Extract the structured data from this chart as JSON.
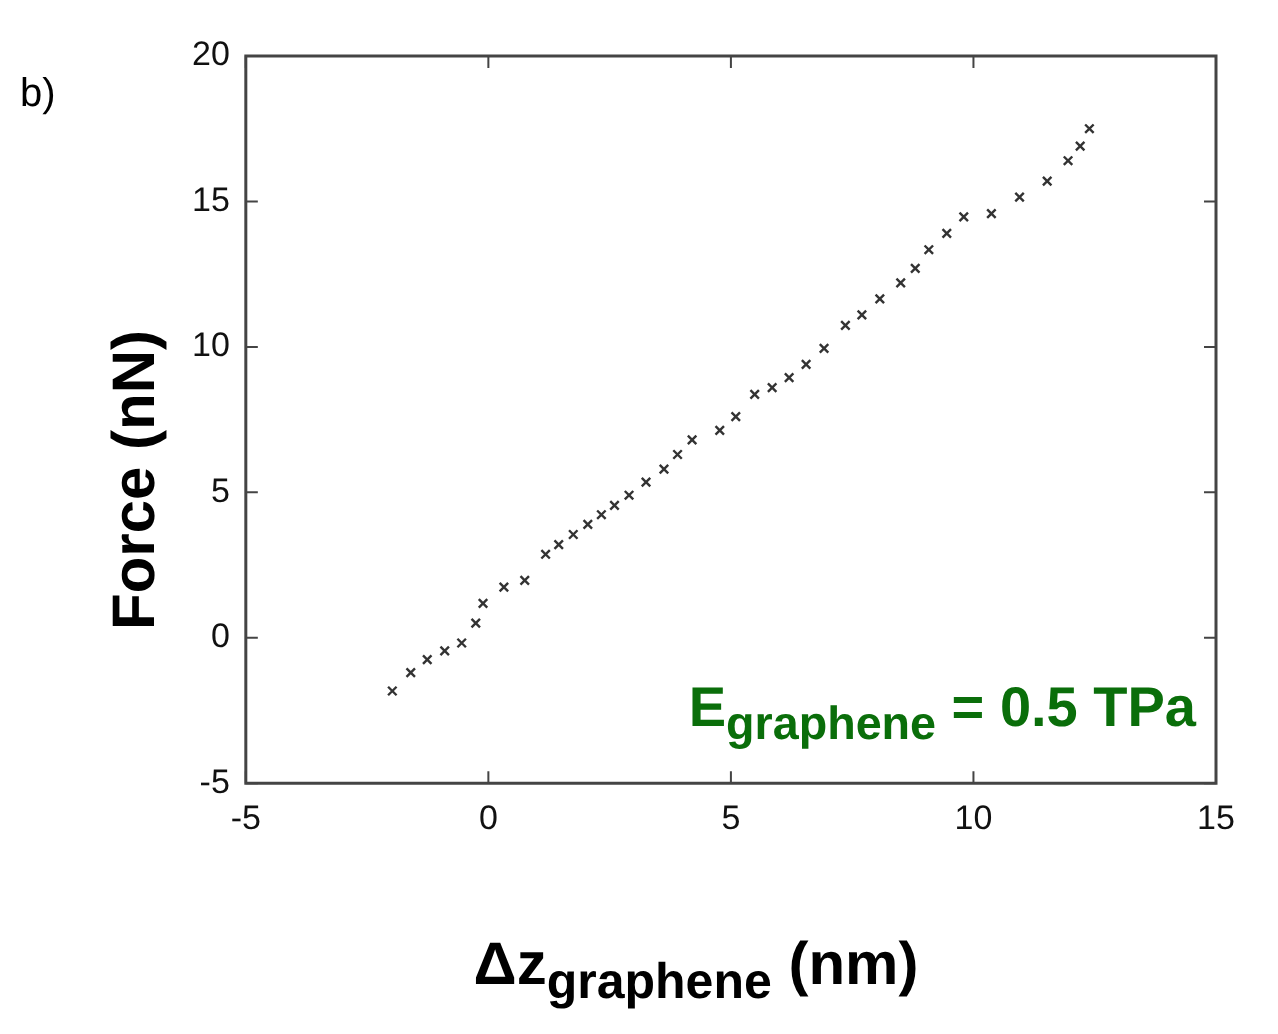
{
  "chart_data": {
    "type": "scatter",
    "xlabel": "Δz$_{graphene}$ (nm)",
    "ylabel": "Force (nN)",
    "annotations": [
      "b)",
      "E$_{graphene}$ = 0.5 TPa"
    ],
    "xlim": [
      -5,
      15
    ],
    "xticks": [
      -5,
      0,
      5,
      10,
      15
    ],
    "ylim": [
      -5,
      20
    ],
    "yticks": [
      -5,
      0,
      5,
      10,
      15,
      20
    ],
    "grid": false,
    "legend": false,
    "marker": "cross",
    "series": [
      {
        "color": "#333333",
        "x": [
          -1.98,
          -1.6,
          -1.26,
          -0.9,
          -0.55,
          -0.26,
          -0.11,
          0.32,
          0.75,
          1.18,
          1.45,
          1.75,
          2.05,
          2.33,
          2.6,
          2.9,
          3.25,
          3.62,
          3.9,
          4.2,
          4.77,
          5.1,
          5.49,
          5.85,
          6.2,
          6.55,
          6.92,
          7.36,
          7.7,
          8.07,
          8.5,
          8.8,
          9.08,
          9.45,
          9.8,
          10.37,
          10.95,
          11.52,
          11.95,
          12.2,
          12.39
        ],
        "values": [
          -1.83,
          -1.2,
          -0.75,
          -0.45,
          -0.18,
          0.5,
          1.18,
          1.74,
          1.97,
          2.87,
          3.2,
          3.55,
          3.9,
          4.23,
          4.55,
          4.9,
          5.35,
          5.8,
          6.3,
          6.8,
          7.13,
          7.6,
          8.37,
          8.6,
          8.94,
          9.4,
          9.95,
          10.74,
          11.1,
          11.65,
          12.2,
          12.7,
          13.34,
          13.9,
          14.47,
          14.58,
          15.15,
          15.7,
          16.4,
          16.9,
          17.5
        ]
      }
    ]
  }
}
